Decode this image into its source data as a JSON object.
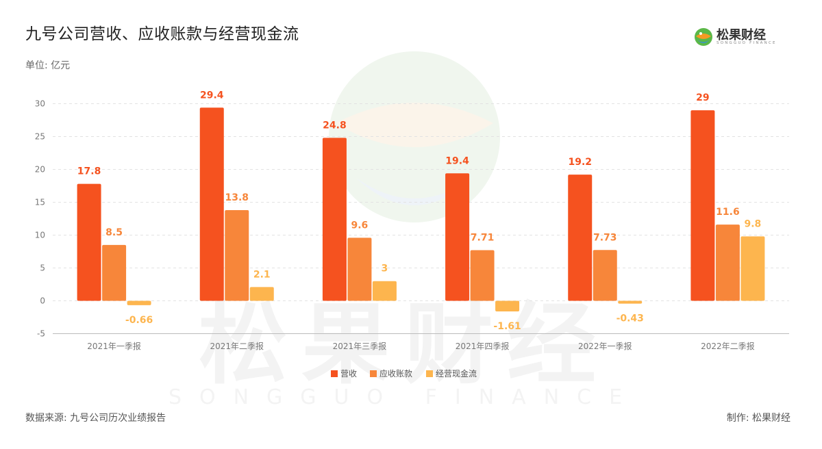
{
  "header": {
    "title": "九号公司营收、应收账款与经营现金流",
    "unit": "单位: 亿元"
  },
  "brand": {
    "name": "松果财经",
    "subtitle": "SONGGUO FINANCE",
    "icon": "songguo-logo-icon",
    "colors": [
      "#5bb848",
      "#f59a23",
      "#3a8fd6"
    ]
  },
  "watermark": {
    "main": "松果财经",
    "sub": "SONGGUO FINANCE",
    "icon": "songguo-watermark-icon"
  },
  "footer": {
    "source": "数据来源: 九号公司历次业绩报告",
    "maker": "制作: 松果财经"
  },
  "chart_data": {
    "type": "bar",
    "categories": [
      "2021年一季报",
      "2021年二季报",
      "2021年三季报",
      "2021年四季报",
      "2022年一季报",
      "2022年二季报"
    ],
    "series": [
      {
        "name": "营收",
        "color": "#f5521f",
        "values": [
          17.8,
          29.4,
          24.8,
          19.4,
          19.2,
          29
        ]
      },
      {
        "name": "应收账款",
        "color": "#f7863a",
        "values": [
          8.5,
          13.8,
          9.6,
          7.71,
          7.73,
          11.6
        ]
      },
      {
        "name": "经营现金流",
        "color": "#fdb54e",
        "values": [
          -0.66,
          2.1,
          3,
          -1.61,
          -0.43,
          9.8
        ]
      }
    ],
    "yticks": [
      -5,
      0,
      5,
      10,
      15,
      20,
      25,
      30
    ],
    "ylim": [
      -5,
      30
    ],
    "grid": true,
    "legend_position": "bottom-center"
  }
}
